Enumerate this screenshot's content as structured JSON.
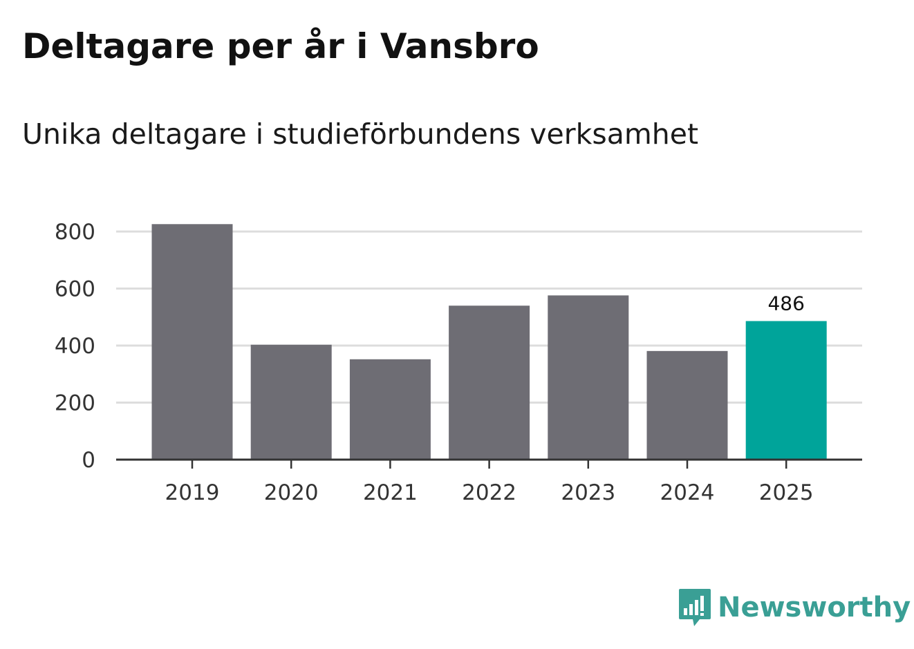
{
  "header": {
    "title": "Deltagare per år i Vansbro",
    "subtitle": "Unika deltagare i studieförbundens verksamhet"
  },
  "brand": {
    "name": "Newsworthy",
    "icon": "newsworthy-logo-icon",
    "color": "#3a9f95"
  },
  "colors": {
    "bar": "#6e6d74",
    "highlight": "#00a49a",
    "grid": "#dddddd",
    "axis": "#333333"
  },
  "chart_data": {
    "type": "bar",
    "categories": [
      "2019",
      "2020",
      "2021",
      "2022",
      "2023",
      "2024",
      "2025"
    ],
    "values": [
      826,
      403,
      352,
      540,
      576,
      381,
      486
    ],
    "highlight_index": 6,
    "data_labels": [
      {
        "index": 6,
        "text": "486"
      }
    ],
    "title": "Deltagare per år i Vansbro",
    "subtitle": "Unika deltagare i studieförbundens verksamhet",
    "xlabel": "",
    "ylabel": "",
    "ylim": [
      0,
      800
    ],
    "yticks": [
      0,
      200,
      400,
      600,
      800
    ],
    "grid": true
  }
}
